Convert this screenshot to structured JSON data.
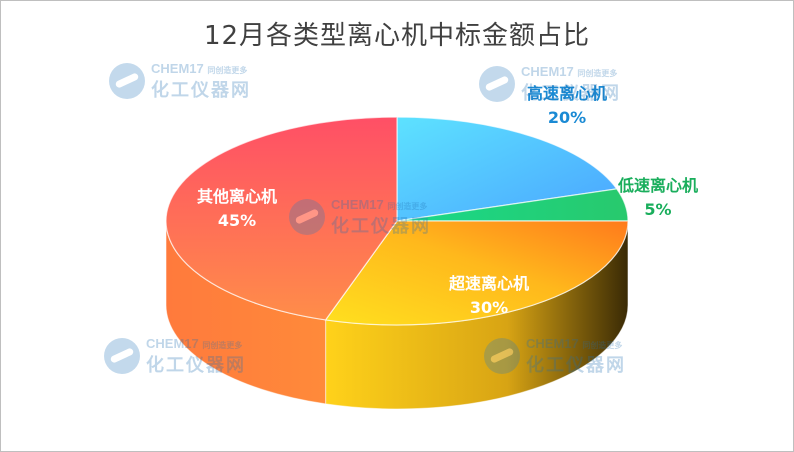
{
  "title": "12月各类型离心机中标金额占比",
  "watermark": {
    "brand": "CHEM17",
    "tagline": "同创造更多",
    "name": "化工仪器网"
  },
  "chart_data": {
    "type": "pie",
    "title": "12月各类型离心机中标金额占比",
    "unit": "%",
    "slices": [
      {
        "label": "高速离心机",
        "value": 20,
        "value_label": "20%",
        "top_color": "#4fc9f7",
        "side_color": "#1d7ea8",
        "label_color": "#1a8ad4"
      },
      {
        "label": "低速离心机",
        "value": 5,
        "value_label": "5%",
        "top_color": "#21d17c",
        "side_color": "#0f8a4c",
        "label_color": "#1aae5c"
      },
      {
        "label": "超速离心机",
        "value": 30,
        "value_label": "30%",
        "top_color": "#ffb81c",
        "side_color": "#c8a21a",
        "label_color": "#ffffff"
      },
      {
        "label": "其他离心机",
        "value": 45,
        "value_label": "45%",
        "top_color": "#ff6a5a",
        "side_color": "#d9532e",
        "label_color": "#ffffff"
      }
    ],
    "legend": "none"
  }
}
